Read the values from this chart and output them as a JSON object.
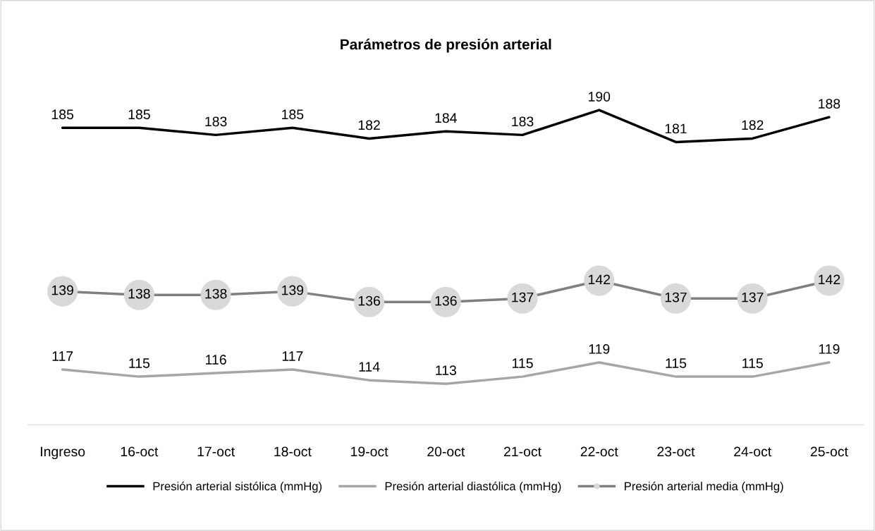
{
  "chart_data": {
    "type": "line",
    "title": "Parámetros de presión arterial",
    "categories": [
      "Ingreso",
      "16-oct",
      "17-oct",
      "18-oct",
      "19-oct",
      "20-oct",
      "21-oct",
      "22-oct",
      "23-oct",
      "24-oct",
      "25-oct"
    ],
    "series": [
      {
        "name": "Presión arterial sistólica (mmHg)",
        "color": "#000000",
        "values": [
          185,
          185,
          183,
          185,
          182,
          184,
          183,
          190,
          181,
          182,
          188
        ]
      },
      {
        "name": "Presión arterial diastólica (mmHg)",
        "color": "#a6a6a6",
        "values": [
          117,
          115,
          116,
          117,
          114,
          113,
          115,
          119,
          115,
          115,
          119
        ]
      },
      {
        "name": "Presión arterial media (mmHg)",
        "color": "#808080",
        "marker": "circle",
        "values": [
          139,
          138,
          138,
          139,
          136,
          136,
          137,
          142,
          137,
          137,
          142
        ]
      }
    ],
    "tick_labels": "x",
    "data_labels": true,
    "grid": false,
    "legend": "bottom"
  }
}
